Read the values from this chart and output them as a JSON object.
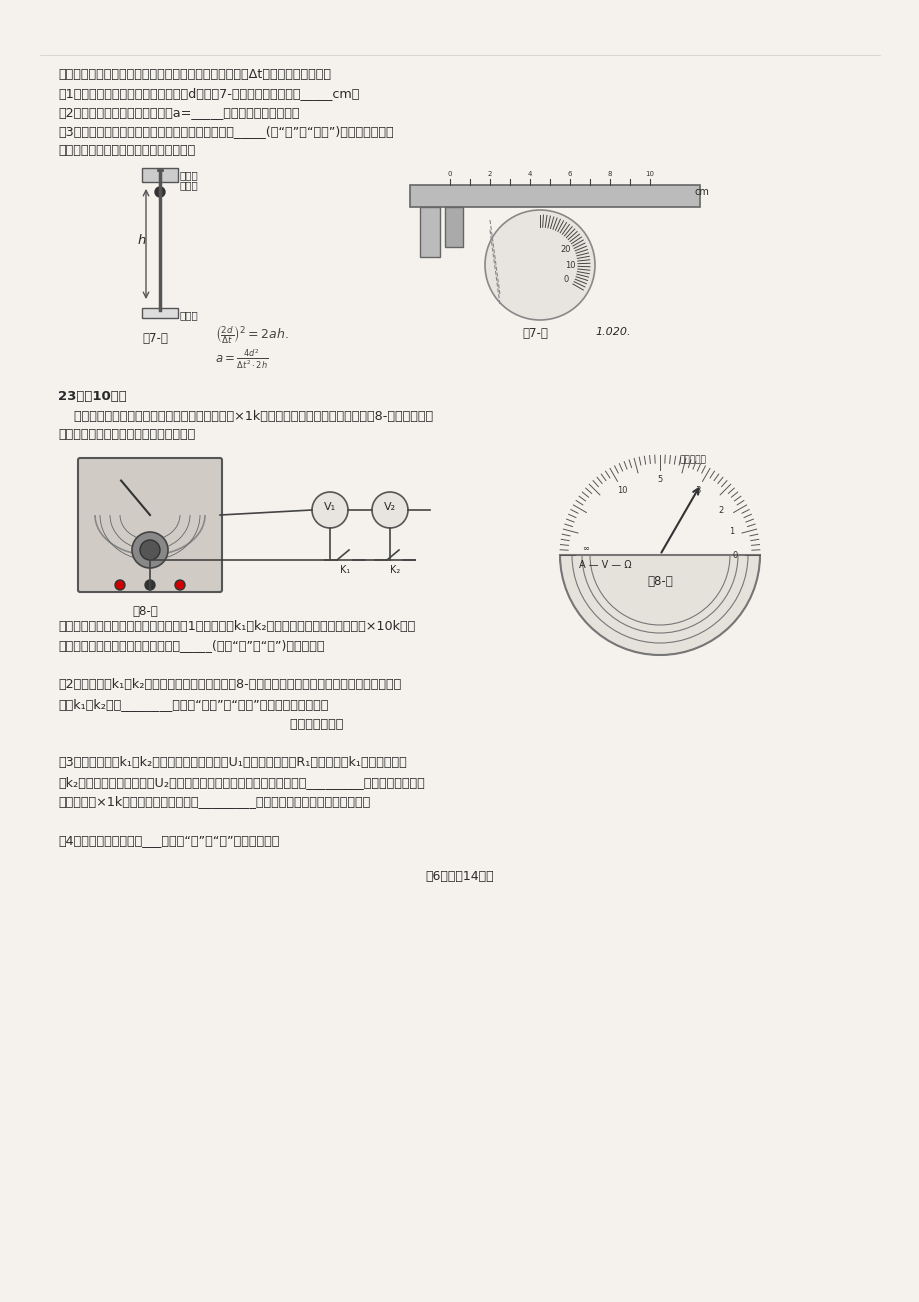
{
  "bg_color": "#f5f2ee",
  "text_color": "#2a2a2a",
  "page_width": 9.2,
  "page_height": 13.02,
  "dpi": 100,
  "top_text_lines": [
    "磁铁的电源，测量金属球下落过程中经过光电门的时间为Δt，请回答下列问题：",
    "（1）用游标卡尺测量金属球的直径为d，如图7-乙所示，则读示数为_____cm；",
    "（2）金属球的加速度的关系式为a=_____；（用以上字母表示）",
    "（3）根据上述实验操作及所测量的物理量，此实验_____(填“能”或“不能”)用来探究外力对",
    "金属球所做的功与它的动能变化的关系。"
  ],
  "formula1": "\\left(\\frac{2d}{\\Delta t}\\right)^2 = 2ah.",
  "formula2": "a = \\frac{4d^2}{\\Delta t^2 \\cdot 2h}",
  "fig7_jia_label": "图7-甲",
  "fig7_yi_label": "图7-乙",
  "annotation_1020": "1.020.",
  "section23_header": "23．（10分）",
  "section23_text1": "    某同学想测量多用电表内电源的电动势和欧姆挡×1k挡的中值电阻，该同学设计了如图8-甲所示的实验",
  "section23_text2": "电路图，ⓅⓆ是完全相同的两块电压表。",
  "fig8_jia_label": "图8-甲",
  "fig8_yi_label": "图8-乙",
  "step1_text": "请你与她按以下步骤共同完成实验：（1）断开开关k₁、k₂，将多用电表挡位调到欧姆挡×10k挡，",
  "step1_text2": "将电压表Ⓠ的正接线柱与多用电表的_____(选填“红”或“黑”)表笔相连；",
  "step2_text": "（2）闭合开关k₁、k₂，发现多用电表的示数如图8-乙所示，为了提高测量的精确度，我们应断开",
  "step2_text2": "开关k₁、k₂，换________（选填“较大”或“较小”）倍率的挡位，然后",
  "step2_text3": "                                                          （具体操作）；",
  "step3_text": "（3）再闭合开关k₁和k₂，记录此时电压表示数U₁，多用电表示数R₁；保持开关k₁闭合，断开开",
  "step3_text2": "关k₂，记录此时电压表示数U₂；测得多用电表内电源的电动势可表达为_________，此时多用电表相",
  "step3_text3": "应的欧姆挡×1k挡的中值电阻可表达为_________；（用上述已测量的物理量表示）",
  "step4_text": "（4）该实验测量的结果___（选填“有”或“无”）系统误差。",
  "page_footer": "第6页（共14页）"
}
